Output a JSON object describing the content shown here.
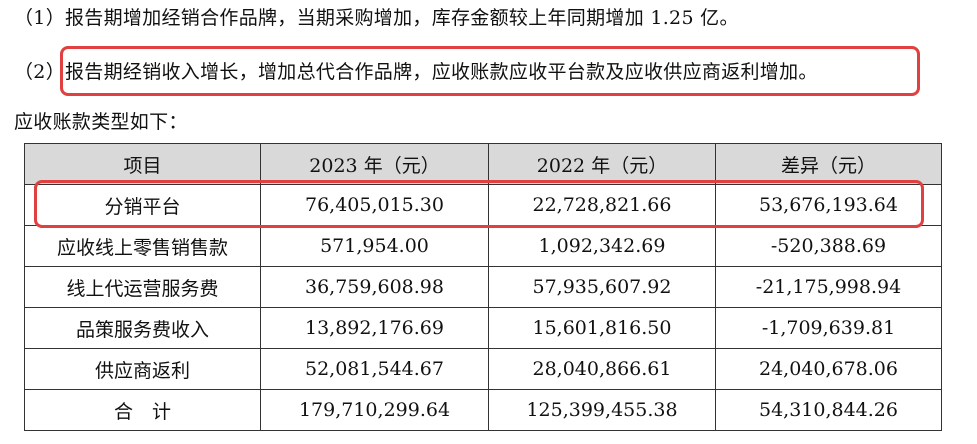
{
  "paragraphs": {
    "p1": "（1）报告期增加经销合作品牌，当期采购增加，库存金额较上年同期增加 1.25 亿。",
    "p2": "（2）报告期经销收入增长，增加总代合作品牌，应收账款应收平台款及应收供应商返利增加。",
    "intro": "应收账款类型如下："
  },
  "table": {
    "headers": [
      "项目",
      "2023 年（元）",
      "2022 年（元）",
      "差异（元）"
    ],
    "rows": [
      [
        "分销平台",
        "76,405,015.30",
        "22,728,821.66",
        "53,676,193.64"
      ],
      [
        "应收线上零售销售款",
        "571,954.00",
        "1,092,342.69",
        "-520,388.69"
      ],
      [
        "线上代运营服务费",
        "36,759,608.98",
        "57,935,607.92",
        "-21,175,998.94"
      ],
      [
        "品策服务费收入",
        "13,892,176.69",
        "15,601,816.50",
        "-1,709,639.81"
      ],
      [
        "供应商返利",
        "52,081,544.67",
        "28,040,866.61",
        "24,040,678.06"
      ],
      [
        "合　计",
        "179,710,299.64",
        "125,399,455.38",
        "54,310,844.26"
      ]
    ]
  },
  "colors": {
    "highlight": "#e0403f",
    "header_bg": "#d9d9d9"
  }
}
